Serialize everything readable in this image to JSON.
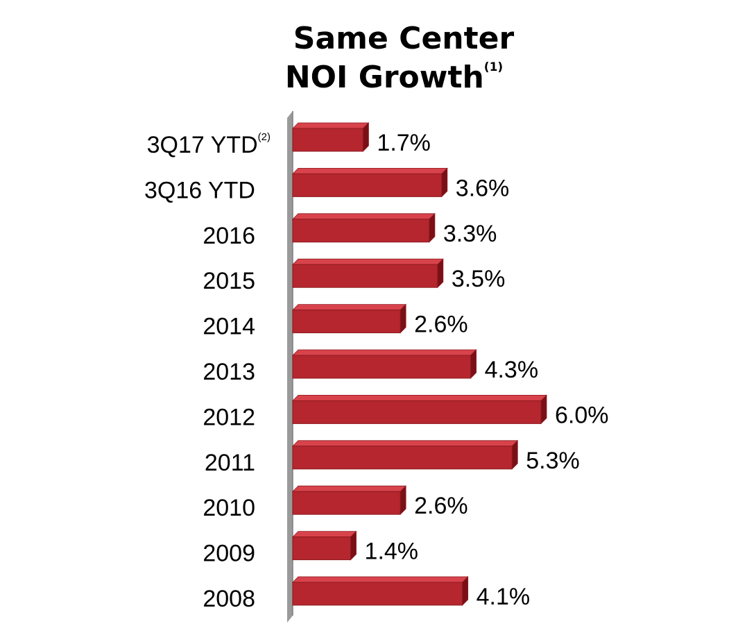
{
  "chart_data": {
    "type": "bar",
    "orientation": "horizontal",
    "title_lines": [
      "Same Center",
      "NOI Growth"
    ],
    "title_footnote": "(1)",
    "categories": [
      {
        "label": "3Q17 YTD",
        "footnote": "(2)"
      },
      {
        "label": "3Q16 YTD",
        "footnote": ""
      },
      {
        "label": "2016",
        "footnote": ""
      },
      {
        "label": "2015",
        "footnote": ""
      },
      {
        "label": "2014",
        "footnote": ""
      },
      {
        "label": "2013",
        "footnote": ""
      },
      {
        "label": "2012",
        "footnote": ""
      },
      {
        "label": "2011",
        "footnote": ""
      },
      {
        "label": "2010",
        "footnote": ""
      },
      {
        "label": "2009",
        "footnote": ""
      },
      {
        "label": "2008",
        "footnote": ""
      }
    ],
    "values": [
      1.7,
      3.6,
      3.3,
      3.5,
      2.6,
      4.3,
      6.0,
      5.3,
      2.6,
      1.4,
      4.1
    ],
    "value_labels": [
      "1.7%",
      "3.6%",
      "3.3%",
      "3.5%",
      "2.6%",
      "4.3%",
      "6.0%",
      "5.3%",
      "2.6%",
      "1.4%",
      "4.1%"
    ],
    "unit": "%",
    "xlim": [
      0,
      6.0
    ],
    "grid": false,
    "legend": "none",
    "colors": {
      "bar_front": "#b5262e",
      "bar_top": "#d8434b",
      "bar_side": "#7a1016",
      "bar_edge": "#8e1a20",
      "axis_wall": "#9a9a9a",
      "axis_wall_shade": "#7d7d7d"
    }
  }
}
